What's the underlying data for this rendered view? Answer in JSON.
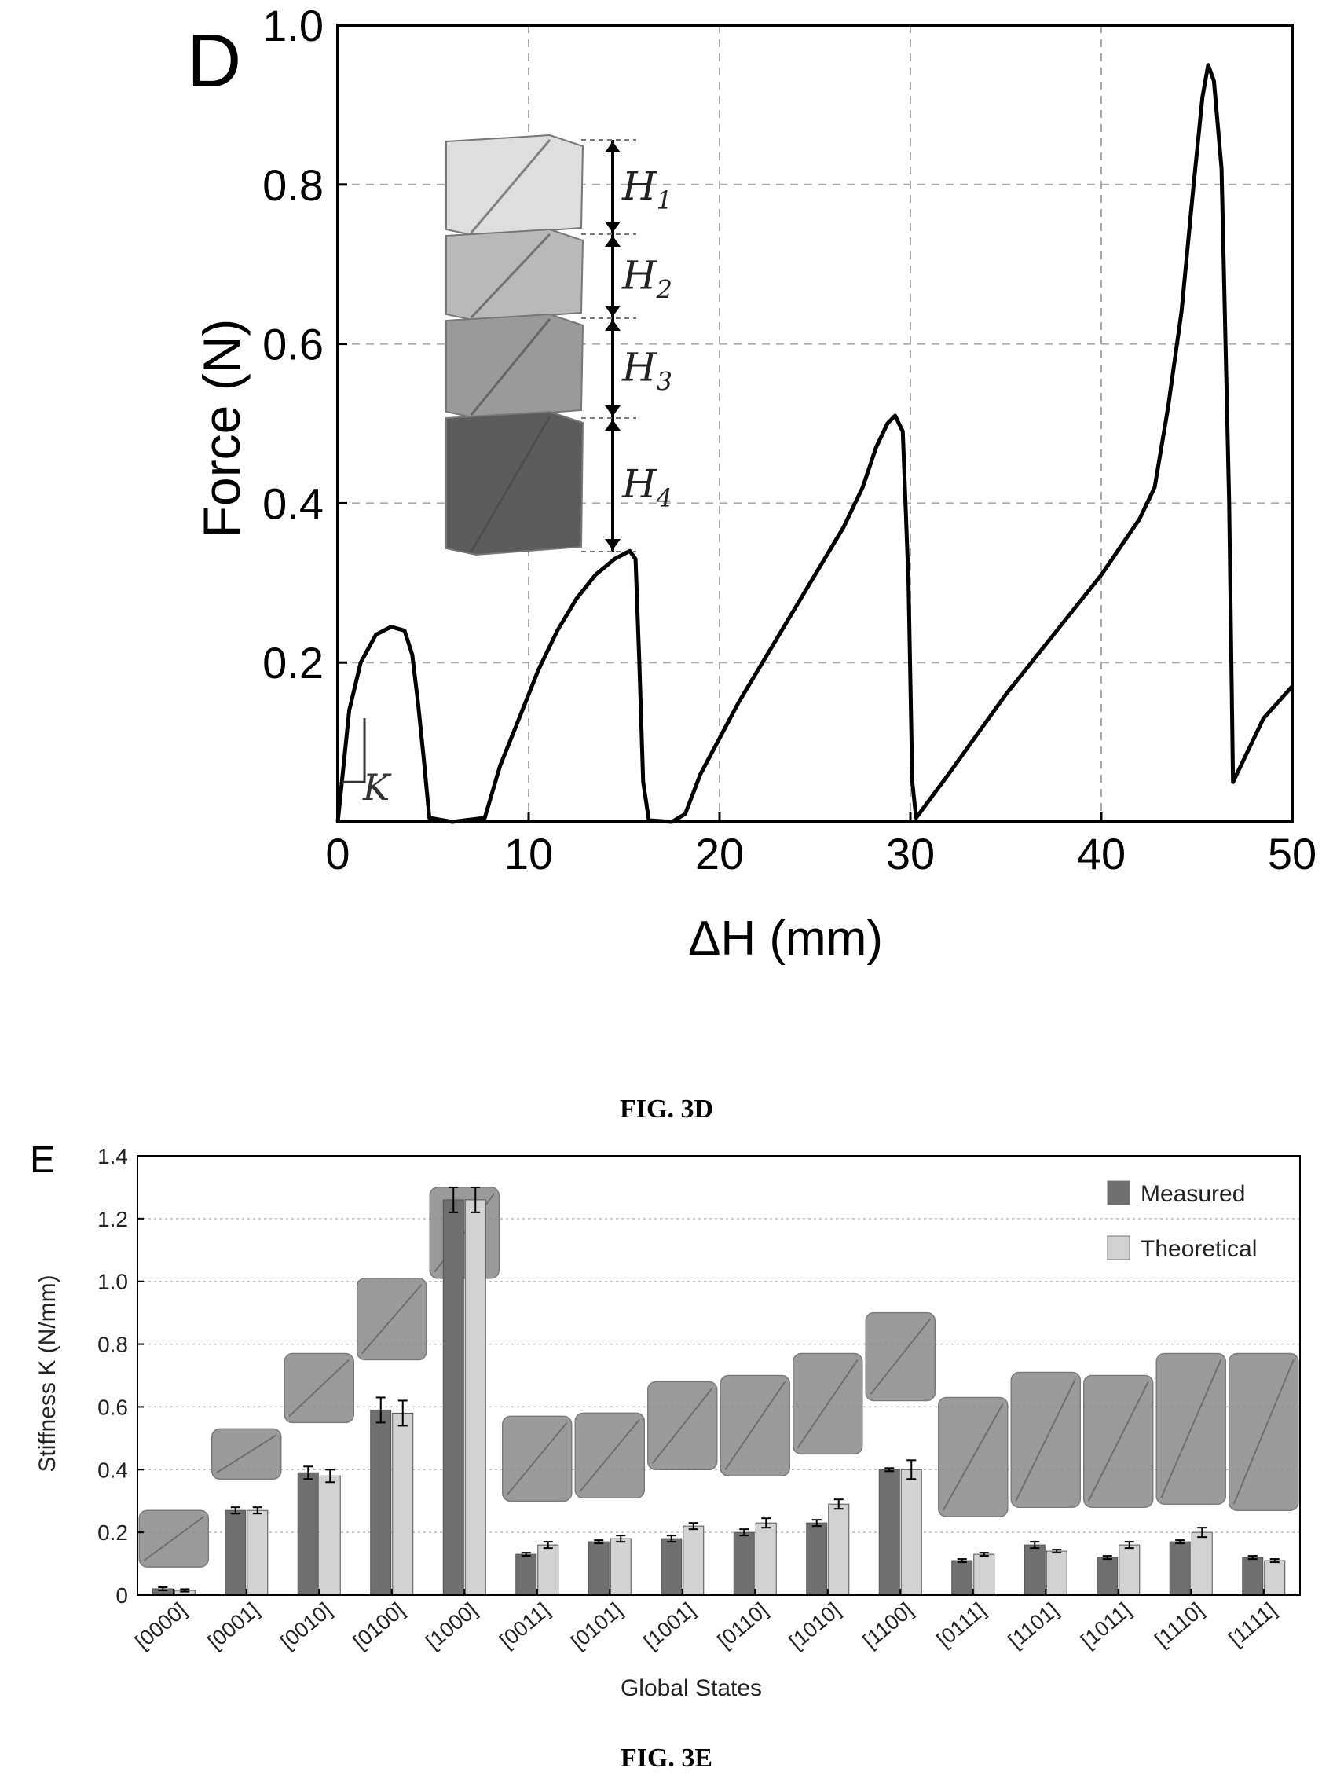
{
  "figure_d": {
    "caption": "FIG. 3D",
    "panel_letter": "D",
    "chart_data": {
      "type": "line",
      "xlabel": "ΔH (mm)",
      "ylabel": "Force (N)",
      "xlim": [
        0,
        50
      ],
      "ylim": [
        0,
        1.0
      ],
      "x_ticks": [
        0,
        10,
        20,
        30,
        40,
        50
      ],
      "y_ticks": [
        0.2,
        0.4,
        0.6,
        0.8,
        1.0
      ],
      "grid": true,
      "annotation_slope": "K",
      "inset_labels": [
        "H1",
        "H2",
        "H3",
        "H4"
      ],
      "series": [
        {
          "x": [
            0,
            0.6,
            1.2,
            2.0,
            2.8,
            3.5,
            3.9,
            4.2,
            4.5,
            4.8,
            6,
            7.7,
            8.5,
            9.5,
            10.5,
            11.5,
            12.5,
            13.5,
            14.5,
            15.3,
            15.6,
            15.8,
            16.0,
            16.3,
            17.5,
            18.2,
            19,
            21,
            23,
            25,
            26.5,
            27.5,
            28.2,
            28.8,
            29.2,
            29.6,
            29.9,
            30.1,
            30.3,
            32,
            35,
            38,
            40,
            42,
            42.8,
            43.5,
            44.2,
            44.8,
            45.3,
            45.6,
            45.9,
            46.3,
            46.7,
            46.9,
            47.3,
            48.5,
            50
          ],
          "y": [
            0,
            0.14,
            0.2,
            0.235,
            0.245,
            0.24,
            0.21,
            0.15,
            0.08,
            0.005,
            0,
            0.005,
            0.07,
            0.13,
            0.19,
            0.24,
            0.28,
            0.31,
            0.33,
            0.34,
            0.33,
            0.2,
            0.05,
            0.002,
            0,
            0.01,
            0.06,
            0.15,
            0.23,
            0.31,
            0.37,
            0.42,
            0.47,
            0.5,
            0.51,
            0.49,
            0.3,
            0.05,
            0.005,
            0.06,
            0.16,
            0.25,
            0.31,
            0.38,
            0.42,
            0.52,
            0.64,
            0.79,
            0.91,
            0.95,
            0.93,
            0.82,
            0.4,
            0.05,
            0.07,
            0.13,
            0.17
          ]
        }
      ]
    }
  },
  "figure_e": {
    "caption": "FIG. 3E",
    "panel_letter": "E",
    "chart_data": {
      "type": "bar",
      "xlabel": "Global States",
      "ylabel": "Stiffness K (N/mm)",
      "ylim": [
        0,
        1.4
      ],
      "y_ticks": [
        "0",
        "0.2",
        "0.4",
        "0.6",
        "0.8",
        "1.0",
        "1.2",
        "1.4"
      ],
      "grid": true,
      "legend_position": "top-right",
      "categories": [
        "[0000]",
        "[0001]",
        "[0010]",
        "[0100]",
        "[1000]",
        "[0011]",
        "[0101]",
        "[1001]",
        "[0110]",
        "[1010]",
        "[1100]",
        "[0111]",
        "[1101]",
        "[1011]",
        "[1110]",
        "[1111]"
      ],
      "series": [
        {
          "name": "Measured",
          "color": "#6f6f6f",
          "values": [
            0.02,
            0.27,
            0.39,
            0.59,
            1.26,
            0.13,
            0.17,
            0.18,
            0.2,
            0.23,
            0.4,
            0.11,
            0.16,
            0.12,
            0.17,
            0.12
          ],
          "errors": [
            0.005,
            0.01,
            0.02,
            0.04,
            0.04,
            0.005,
            0.005,
            0.01,
            0.01,
            0.01,
            0.005,
            0.005,
            0.01,
            0.005,
            0.005,
            0.005
          ]
        },
        {
          "name": "Theoretical",
          "color": "#d2d2d2",
          "values": [
            0.015,
            0.27,
            0.38,
            0.58,
            1.26,
            0.16,
            0.18,
            0.22,
            0.23,
            0.29,
            0.4,
            0.13,
            0.14,
            0.16,
            0.2,
            0.11
          ],
          "errors": [
            0.004,
            0.01,
            0.02,
            0.04,
            0.04,
            0.01,
            0.01,
            0.01,
            0.015,
            0.015,
            0.03,
            0.005,
            0.005,
            0.01,
            0.015,
            0.005
          ]
        }
      ],
      "model_icon_tops": [
        0.27,
        0.53,
        0.77,
        1.01,
        1.3,
        0.57,
        0.58,
        0.68,
        0.7,
        0.77,
        0.9,
        0.63,
        0.71,
        0.7,
        0.77,
        0.77
      ],
      "model_icon_bottoms": [
        0.09,
        0.37,
        0.55,
        0.75,
        1.01,
        0.3,
        0.31,
        0.4,
        0.38,
        0.45,
        0.62,
        0.25,
        0.28,
        0.28,
        0.29,
        0.27
      ]
    }
  }
}
